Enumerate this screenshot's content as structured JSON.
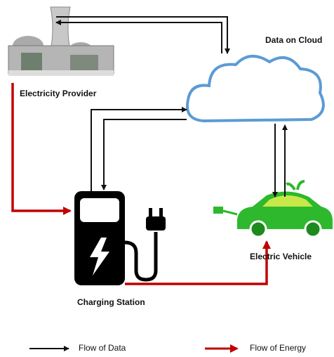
{
  "nodes": [
    {
      "label": "Data on Cloud"
    },
    {
      "label": "Electricity Provider"
    },
    {
      "label": "Charging Station"
    },
    {
      "label": "Electric Vehicle"
    }
  ],
  "legend": [
    {
      "label": "Flow of Data"
    },
    {
      "label": "Flow of Energy"
    }
  ]
}
